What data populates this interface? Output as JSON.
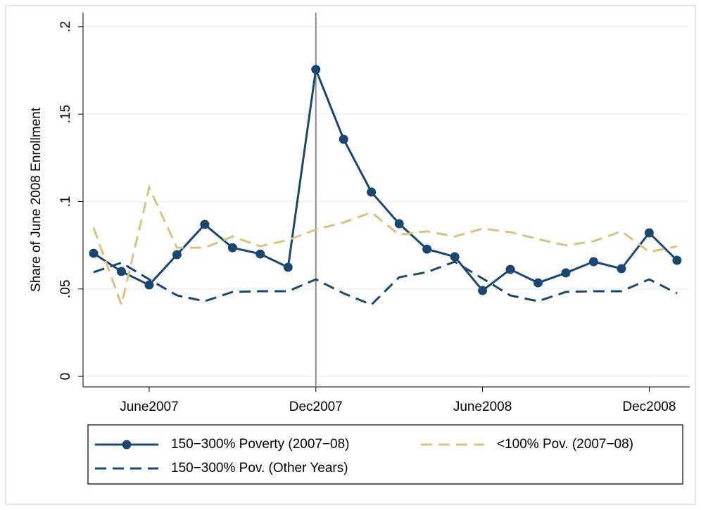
{
  "chart_data": {
    "type": "line",
    "y_label": "Share of June 2008 Enrollment",
    "categories": [
      null,
      null,
      "June2007",
      null,
      null,
      null,
      null,
      null,
      "Dec2007",
      null,
      null,
      null,
      null,
      null,
      "June2008",
      null,
      null,
      null,
      null,
      null,
      "Dec2008",
      null
    ],
    "series": [
      {
        "name": "150−300% Poverty (2007−08)",
        "color": "#1a476f",
        "dashed": false,
        "markers": true,
        "values": [
          0.0704,
          0.06,
          0.0523,
          0.0696,
          0.0869,
          0.0736,
          0.07,
          0.0624,
          0.1755,
          0.1356,
          0.1054,
          0.0873,
          0.0728,
          0.0684,
          0.0491,
          0.0612,
          0.0535,
          0.0592,
          0.0656,
          0.0616,
          0.0821,
          0.0664
        ]
      },
      {
        "name": "<100% Pov. (2007−08)",
        "color": "#d8c27c",
        "dashed": true,
        "markers": false,
        "values": [
          0.085,
          0.041,
          0.108,
          0.0736,
          0.0736,
          0.08,
          0.0744,
          0.078,
          0.084,
          0.088,
          0.0938,
          0.081,
          0.083,
          0.08,
          0.0845,
          0.0825,
          0.0785,
          0.0749,
          0.0773,
          0.083,
          0.0712,
          0.0744
        ]
      },
      {
        "name": "150−300% Pov. (Other Years)",
        "color": "#1a476f",
        "dashed": true,
        "markers": false,
        "values": [
          0.0596,
          0.065,
          0.0555,
          0.0463,
          0.043,
          0.0483,
          0.0487,
          0.0487,
          0.0555,
          0.0475,
          0.041,
          0.0567,
          0.0596,
          0.0656,
          0.056,
          0.0463,
          0.043,
          0.0483,
          0.0487,
          0.0487,
          0.0555,
          0.0475
        ]
      }
    ],
    "ylim": [
      -0.006,
      0.208
    ],
    "yticks": [
      0,
      {
        "value": 0.05,
        "label": ".05"
      },
      {
        "value": 0.1,
        "label": ".1"
      },
      {
        "value": 0.15,
        "label": ".15"
      },
      {
        "value": 0.2,
        "label": ".2"
      }
    ],
    "grid": true,
    "vline_at": "Dec2007",
    "legend": "bottom"
  }
}
